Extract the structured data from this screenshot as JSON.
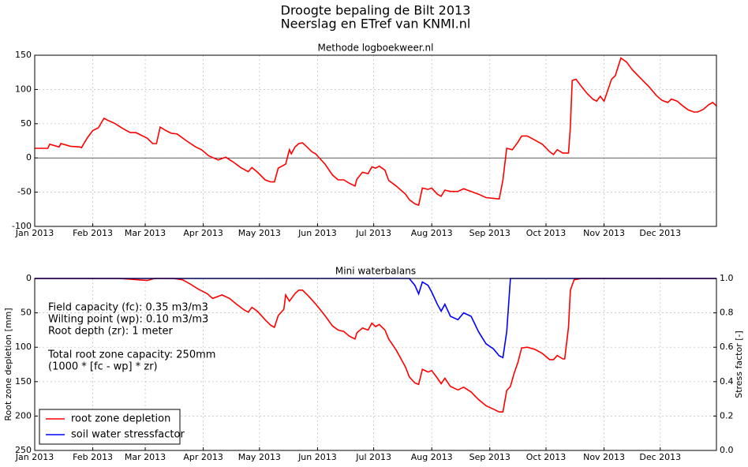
{
  "figure_title": [
    "Droogte bepaling de Bilt 2013",
    "Neerslag en ETref van KNMI.nl"
  ],
  "chart_data": [
    {
      "type": "line",
      "title": "Methode logboekweer.nl",
      "x": [
        0,
        7,
        8,
        13,
        14,
        19,
        24,
        25,
        28,
        31,
        34,
        37,
        39,
        43,
        47,
        51,
        54,
        60,
        63,
        65,
        67,
        70,
        73,
        76,
        81,
        86,
        89,
        93,
        98,
        102,
        106,
        110,
        114,
        116,
        119,
        123,
        126,
        128,
        130,
        134,
        136,
        137,
        139,
        141,
        143,
        145,
        148,
        150,
        155,
        159,
        162,
        165,
        168,
        171,
        172,
        175,
        178,
        180,
        182,
        184,
        187,
        189,
        193,
        198,
        200,
        203,
        205,
        207,
        210,
        212,
        215,
        217,
        219,
        222,
        226,
        229,
        233,
        237,
        241,
        245,
        248,
        250,
        252,
        255,
        258,
        260,
        263,
        267,
        271,
        275,
        277,
        279,
        282,
        285,
        286,
        287,
        289,
        292,
        295,
        298,
        300,
        302,
        304,
        308,
        310,
        313,
        316,
        319,
        324,
        328,
        332,
        335,
        338,
        340,
        343,
        346,
        349,
        352,
        354,
        357,
        360,
        362,
        364
      ],
      "series": [
        {
          "color": "#ff0000",
          "values": [
            14,
            14,
            20,
            16,
            21,
            17,
            16,
            15,
            29,
            40,
            44,
            58,
            55,
            50,
            43,
            37,
            37,
            29,
            21,
            21,
            45,
            40,
            36,
            35,
            25,
            16,
            12,
            3,
            -3,
            1,
            -6,
            -14,
            -20,
            -14,
            -21,
            -32,
            -35,
            -35,
            -15,
            -9,
            12,
            6,
            16,
            21,
            22,
            17,
            9,
            6,
            -9,
            -25,
            -32,
            -32,
            -37,
            -41,
            -31,
            -21,
            -23,
            -13,
            -15,
            -12,
            -18,
            -33,
            -41,
            -53,
            -61,
            -67,
            -69,
            -44,
            -46,
            -44,
            -53,
            -56,
            -47,
            -49,
            -49,
            -45,
            -49,
            -53,
            -58,
            -59,
            -60,
            -32,
            14,
            12,
            23,
            32,
            32,
            26,
            20,
            9,
            5,
            12,
            7,
            7,
            46,
            113,
            115,
            104,
            94,
            86,
            83,
            90,
            83,
            115,
            120,
            146,
            140,
            129,
            115,
            104,
            91,
            84,
            81,
            86,
            83,
            76,
            70,
            67,
            67,
            71,
            78,
            81,
            76
          ]
        }
      ],
      "hline": 0,
      "xlim": [
        0,
        364
      ],
      "xticks": [
        {
          "value": 0,
          "label": "Jan 2013"
        },
        {
          "value": 31,
          "label": "Feb 2013"
        },
        {
          "value": 59,
          "label": "Mar 2013"
        },
        {
          "value": 90,
          "label": "Apr 2013"
        },
        {
          "value": 120,
          "label": "May 2013"
        },
        {
          "value": 151,
          "label": "Jun 2013"
        },
        {
          "value": 181,
          "label": "Jul 2013"
        },
        {
          "value": 212,
          "label": "Aug 2013"
        },
        {
          "value": 243,
          "label": "Sep 2013"
        },
        {
          "value": 273,
          "label": "Oct 2013"
        },
        {
          "value": 304,
          "label": "Nov 2013"
        },
        {
          "value": 334,
          "label": "Dec 2013"
        }
      ],
      "ylim": [
        -100,
        150
      ],
      "yticks": [
        -100,
        -50,
        0,
        50,
        100,
        150
      ],
      "grid": true
    },
    {
      "type": "line",
      "title": "Mini waterbalans",
      "y_label": "Root zone depletion [mm]",
      "y2_label": "Stress factor [-]",
      "annotation": [
        "Field capacity (fc): 0.35 m3/m3",
        "Wilting point (wp): 0.10 m3/m3",
        "Root depth (zr): 1 meter",
        "Total root zone capacity: 250mm",
        "(1000 * [fc - wp] * zr)"
      ],
      "x": [
        0,
        45,
        51,
        60,
        64,
        74,
        79,
        83,
        87,
        92,
        95,
        100,
        104,
        108,
        112,
        114,
        116,
        119,
        123,
        126,
        128,
        130,
        133,
        134,
        136,
        139,
        141,
        143,
        146,
        150,
        155,
        159,
        162,
        165,
        168,
        171,
        172,
        175,
        178,
        180,
        182,
        184,
        187,
        189,
        193,
        198,
        200,
        203,
        205,
        207,
        210,
        212,
        215,
        217,
        219,
        222,
        226,
        229,
        233,
        237,
        241,
        245,
        248,
        250,
        252,
        254,
        256,
        258,
        260,
        263,
        267,
        271,
        275,
        277,
        279,
        282,
        283,
        285,
        286,
        288,
        292,
        364
      ],
      "series": [
        {
          "name": "root zone depletion",
          "color": "#ff0000",
          "values": [
            0,
            0,
            1,
            3,
            0,
            0,
            2,
            8,
            15,
            22,
            29,
            24,
            29,
            38,
            46,
            49,
            42,
            48,
            60,
            68,
            71,
            54,
            45,
            24,
            33,
            22,
            17,
            17,
            25,
            37,
            54,
            69,
            75,
            77,
            84,
            88,
            79,
            72,
            75,
            65,
            70,
            67,
            75,
            88,
            104,
            129,
            143,
            152,
            154,
            132,
            136,
            134,
            145,
            153,
            145,
            157,
            162,
            158,
            165,
            176,
            185,
            190,
            194,
            194,
            163,
            157,
            138,
            122,
            101,
            100,
            103,
            109,
            118,
            118,
            112,
            117,
            117,
            71,
            17,
            2,
            0,
            0
          ]
        },
        {
          "name": "soil water stressfactor",
          "color": "#0000ff",
          "axis": "y2",
          "values": [
            1,
            1,
            1,
            1,
            1,
            1,
            1,
            1,
            1,
            1,
            1,
            1,
            1,
            1,
            1,
            1,
            1,
            1,
            1,
            1,
            1,
            1,
            1,
            1,
            1,
            1,
            1,
            1,
            1,
            1,
            1,
            1,
            1,
            1,
            1,
            1,
            1,
            1,
            1,
            1,
            1,
            1,
            1,
            1,
            1,
            1,
            1,
            0.96,
            0.91,
            0.98,
            0.96,
            0.92,
            0.85,
            0.81,
            0.85,
            0.78,
            0.76,
            0.8,
            0.78,
            0.69,
            0.62,
            0.59,
            0.55,
            0.54,
            0.69,
            1,
            1,
            1,
            1,
            1,
            1,
            1,
            1,
            1,
            1,
            1,
            1,
            1,
            1,
            1,
            1,
            1
          ]
        }
      ],
      "xlim": [
        0,
        364
      ],
      "xticks": [
        {
          "value": 0,
          "label": "Jan 2013"
        },
        {
          "value": 31,
          "label": "Feb 2013"
        },
        {
          "value": 59,
          "label": "Mar 2013"
        },
        {
          "value": 90,
          "label": "Apr 2013"
        },
        {
          "value": 120,
          "label": "May 2013"
        },
        {
          "value": 151,
          "label": "Jun 2013"
        },
        {
          "value": 181,
          "label": "Jul 2013"
        },
        {
          "value": 212,
          "label": "Aug 2013"
        },
        {
          "value": 243,
          "label": "Sep 2013"
        },
        {
          "value": 273,
          "label": "Oct 2013"
        },
        {
          "value": 304,
          "label": "Nov 2013"
        },
        {
          "value": 334,
          "label": "Dec 2013"
        }
      ],
      "ylim": [
        0,
        250
      ],
      "y_inverted": true,
      "yticks": [
        0,
        50,
        100,
        150,
        200,
        250
      ],
      "y2lim": [
        0,
        1
      ],
      "y2ticks": [
        {
          "value": 0,
          "label": "0.0"
        },
        {
          "value": 0.2,
          "label": "0.2"
        },
        {
          "value": 0.4,
          "label": "0.4"
        },
        {
          "value": 0.6,
          "label": "0.6"
        },
        {
          "value": 0.8,
          "label": "0.8"
        },
        {
          "value": 1,
          "label": "1.0"
        }
      ],
      "grid": true,
      "legend": "lower left"
    }
  ]
}
